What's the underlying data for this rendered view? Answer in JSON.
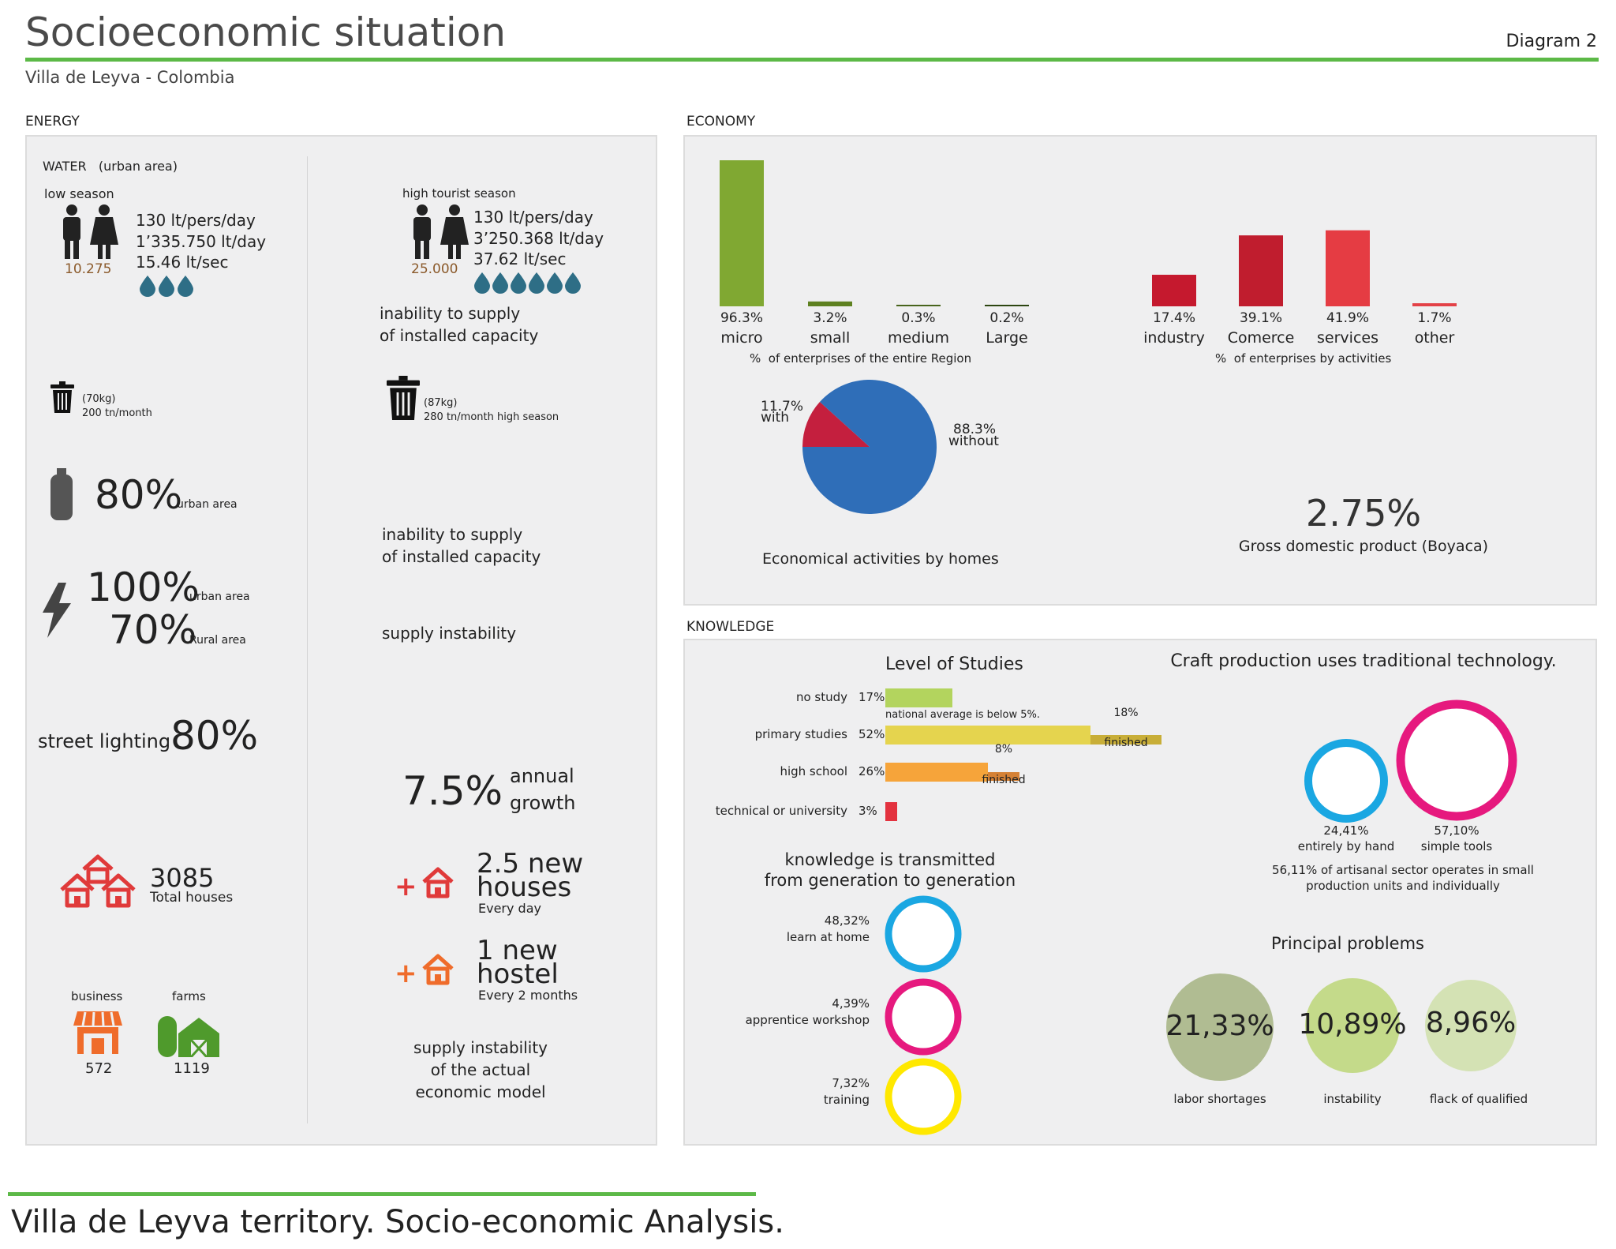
{
  "header": {
    "title": "Socioeconomic situation",
    "subtitle": "Villa de Leyva - Colombia",
    "diagram_label": "Diagram 2"
  },
  "footer": {
    "caption": "Villa de Leyva territory. Socio-economic Analysis."
  },
  "energy": {
    "section_label": "ENERGY",
    "water_title": "WATER   (urban area)",
    "low": {
      "season": "low season",
      "line1": "130 lt/pers/day",
      "line2": "1’335.750 lt/day",
      "line3": "15.46  lt/sec",
      "population": "10.275",
      "drops": 3
    },
    "high": {
      "season": "high tourist season",
      "line1": "130 lt/pers/day",
      "line2": "3’250.368 lt/day",
      "line3": "37.62 lt/sec",
      "population": "25.000",
      "drops": 6
    },
    "water_note_1": "inability to supply",
    "water_note_2": "of installed capacity",
    "waste_low_kg": "(70kg)",
    "waste_low_tn": "200 tn/month",
    "waste_high_kg": "(87kg)",
    "waste_high_tn": "280 tn/month high season",
    "gas_pct": "80%",
    "gas_area": "urban area",
    "gas_note_1": "inability to supply",
    "gas_note_2": "of installed capacity",
    "elec_urban_pct": "100%",
    "elec_urban": "urban area",
    "elec_rural_pct": "70%",
    "elec_rural": "Rural area",
    "elec_note": "supply instability",
    "street_label": "street lighting",
    "street_pct": "80%",
    "growth_pct": "7.5%",
    "growth_1": "annual",
    "growth_2": "growth",
    "houses_total": "3085",
    "houses_label": "Total houses",
    "new_houses_1": "2.5 new",
    "new_houses_2": "houses",
    "new_houses_freq": "Every day",
    "new_hostel_1": "1 new",
    "new_hostel_2": "hostel",
    "new_hostel_freq": "Every 2 months",
    "business_label": "business",
    "business_count": "572",
    "farms_label": "farms",
    "farms_count": "1119",
    "model_note_1": "supply instability",
    "model_note_2": "of the actual",
    "model_note_3": "economic model",
    "colors": {
      "drop": "#2e6e86",
      "house_red": "#e03a3a",
      "house_orange": "#ef6c2b",
      "farm_green": "#4f9a2c"
    }
  },
  "economy": {
    "section_label": "ECONOMY",
    "size_caption": "%  of enterprises of the entire Region",
    "activity_caption": "%  of enterprises by activities",
    "pie_caption": "Economical activities by homes",
    "gdp_value": "2.75%",
    "gdp_label": "Gross domestic product (Boyaca)"
  },
  "chart_data": [
    {
      "type": "bar",
      "categories": [
        "micro",
        "small",
        "medium",
        "Large"
      ],
      "values": [
        96.3,
        3.2,
        0.3,
        0.2
      ],
      "value_labels": [
        "96.3%",
        "3.2%",
        "0.3%",
        "0.2%"
      ],
      "colors": [
        "#80a832",
        "#5e8120",
        "#48641c",
        "#2c4510"
      ],
      "xlabel": "%  of enterprises of the entire Region"
    },
    {
      "type": "bar",
      "categories": [
        "industry",
        "Comerce",
        "services",
        "other"
      ],
      "values": [
        17.4,
        39.1,
        41.9,
        1.7
      ],
      "value_labels": [
        "17.4%",
        "39.1%",
        "41.9%",
        "1.7%"
      ],
      "colors": [
        "#c5192e",
        "#c01d2e",
        "#e53c43",
        "#e34147"
      ],
      "xlabel": "%  of enterprises by activities"
    },
    {
      "type": "pie",
      "categories": [
        "with",
        "without"
      ],
      "values": [
        11.7,
        88.3
      ],
      "value_labels": [
        "11.7%",
        "88.3%"
      ],
      "colors": [
        "#c41f3e",
        "#2f6eb8"
      ],
      "title": "Economical activities by homes"
    },
    {
      "type": "bar",
      "orientation": "horizontal",
      "title": "Level of Studies",
      "categories": [
        "no study",
        "primary studies",
        "high school",
        "technical or university"
      ],
      "values": [
        17,
        52,
        26,
        3
      ],
      "value_labels": [
        "17%",
        "52%",
        "26%",
        "3%"
      ],
      "finished": [
        null,
        18,
        8,
        null
      ],
      "finished_labels": [
        "",
        "18%",
        "8%",
        ""
      ],
      "colors": [
        "#b3d45e",
        "#e5d44e",
        "#f6a43a",
        "#e3323f"
      ],
      "finished_colors": [
        "",
        "#c8ae38",
        "#d58135",
        ""
      ]
    }
  ],
  "knowledge": {
    "section_label": "KNOWLEDGE",
    "studies_title": "Level of Studies",
    "national_note": "national average is below 5%.",
    "finished_label": "finished",
    "transmit_1": "knowledge is transmitted",
    "transmit_2": "from generation to generation",
    "rings": [
      {
        "pct": "48,32%",
        "label": "learn at home",
        "color": "#1aa7e2"
      },
      {
        "pct": "4,39%",
        "label": "apprentice workshop",
        "color": "#e6197e"
      },
      {
        "pct": "7,32%",
        "label": "training",
        "color": "#ffe800"
      }
    ],
    "craft_title": "Craft production uses traditional technology.",
    "craft_hand_pct": "24,41%",
    "craft_hand": "entirely by hand",
    "craft_tools_pct": "57,10%",
    "craft_tools": "simple tools",
    "craft_note_1": "56,11% of artisanal sector operates in small",
    "craft_note_2": "production units and individually",
    "problems_title": "Principal problems",
    "problems": [
      {
        "value": "21,33%",
        "label": "labor shortages",
        "color": "#b0bc92"
      },
      {
        "value": "10,89%",
        "label": "instability",
        "color": "#c4da8a"
      },
      {
        "value": "8,96%",
        "label": "flack of qualified",
        "color": "#d4e2b4"
      }
    ]
  }
}
